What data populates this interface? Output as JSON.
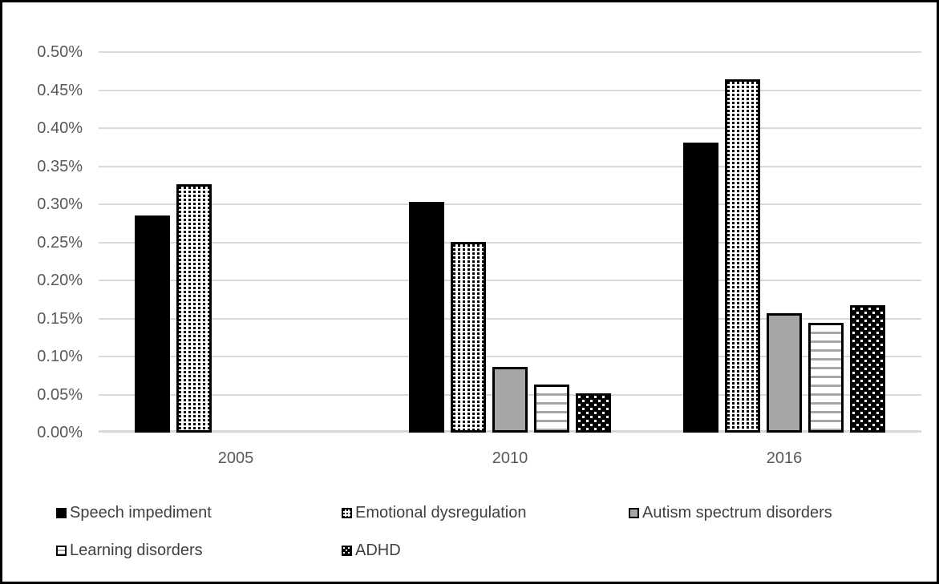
{
  "chart_data": {
    "type": "bar",
    "title": "",
    "categories": [
      "2005",
      "2010",
      "2016"
    ],
    "series": [
      {
        "name": "Speech impediment",
        "pattern": "solid-black",
        "values": [
          0.285,
          0.303,
          0.381
        ]
      },
      {
        "name": "Emotional dysregulation",
        "pattern": "dotted-grid",
        "values": [
          0.326,
          0.25,
          0.464
        ]
      },
      {
        "name": "Autism spectrum disorders",
        "pattern": "solid-gray",
        "values": [
          null,
          0.086,
          0.157
        ]
      },
      {
        "name": "Learning disorders",
        "pattern": "horizontal-lines",
        "values": [
          null,
          0.063,
          0.144
        ]
      },
      {
        "name": "ADHD",
        "pattern": "white-dots-on-black",
        "values": [
          null,
          0.052,
          0.167
        ]
      }
    ],
    "y_axis": {
      "min": 0,
      "max": 0.5,
      "step": 0.05,
      "unit": "%",
      "tick_labels": [
        "0.00%",
        "0.05%",
        "0.10%",
        "0.15%",
        "0.20%",
        "0.25%",
        "0.30%",
        "0.35%",
        "0.40%",
        "0.45%",
        "0.50%"
      ]
    },
    "grid": true,
    "legend_position": "bottom",
    "legend_rows": [
      [
        "Speech impediment",
        "Emotional dysregulation",
        "Autism spectrum disorders"
      ],
      [
        "Learning disorders",
        "ADHD"
      ]
    ]
  },
  "colors": {
    "bar_black": "#000000",
    "bar_gray": "#a6a6a6",
    "gridline": "#d9d9d9",
    "tick_text": "#595959",
    "legend_text": "#404040",
    "frame_border": "#000000",
    "background": "#ffffff"
  }
}
